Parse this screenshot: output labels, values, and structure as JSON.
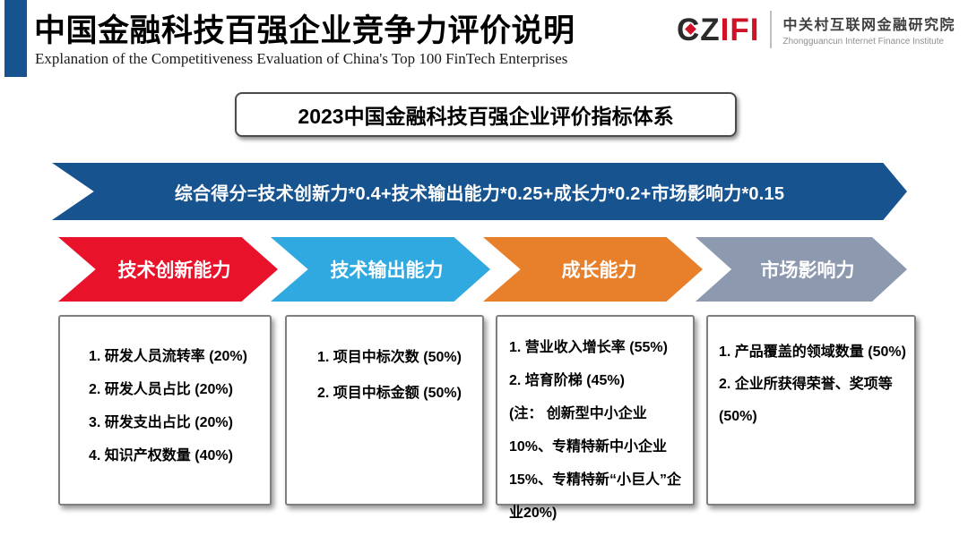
{
  "header": {
    "title": "中国金融科技百强企业竞争力评价说明",
    "subtitle": "Explanation of the Competitiveness Evaluation of China's Top 100 FinTech Enterprises",
    "accent_color": "#17538f"
  },
  "logo": {
    "wordmark_dark": "CZ",
    "wordmark_red": "IFI",
    "red": "#d01126",
    "org_cn": "中关村互联网金融研究院",
    "org_en": "Zhongguancun Internet Finance Institute"
  },
  "system_title": "2023中国金融科技百强企业评价指标体系",
  "formula_banner": {
    "text": "综合得分=技术创新力*0.4+技术输出能力*0.25+成长力*0.2+市场影响力*0.15",
    "color": "#17538f"
  },
  "categories": [
    {
      "label": "技术创新能力",
      "color": "#e8132b",
      "items": [
        "1. 研发人员流转率 (20%)",
        "2. 研发人员占比 (20%)",
        "3. 研发支出占比 (20%)",
        "4. 知识产权数量 (40%)"
      ]
    },
    {
      "label": "技术输出能力",
      "color": "#2fa9e0",
      "items": [
        "1. 项目中标次数 (50%)",
        "2. 项目中标金额 (50%)"
      ]
    },
    {
      "label": "成长能力",
      "color": "#e8802b",
      "items": [
        "1. 营业收入增长率 (55%)",
        "2. 培育阶梯 (45%)",
        "(注： 创新型中小企业10%、专精特新中小企业15%、专精特新“小巨人”企业20%)"
      ]
    },
    {
      "label": "市场影响力",
      "color": "#8c99ae",
      "items": [
        "1. 产品覆盖的领域数量 (50%)",
        "2. 企业所获得荣誉、奖项等 (50%)"
      ]
    }
  ]
}
